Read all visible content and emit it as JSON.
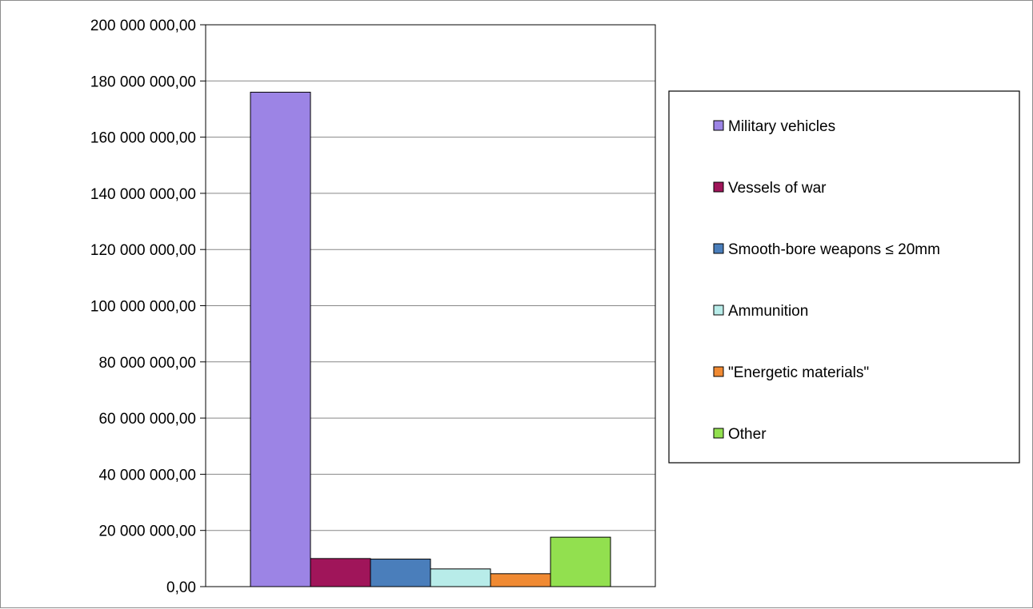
{
  "chart_data": {
    "type": "bar",
    "title": "",
    "xlabel": "",
    "ylabel": "",
    "categories": [
      "Military vehicles",
      "Vessels of war",
      "Smooth-bore weapons ≤ 20mm",
      "Ammunition",
      "\"Energetic materials\"",
      "Other"
    ],
    "series": [
      {
        "name": "Military vehicles",
        "value": 176000000,
        "color": "#9c84e5"
      },
      {
        "name": "Vessels of war",
        "value": 10000000,
        "color": "#a0155a"
      },
      {
        "name": "Smooth-bore weapons ≤ 20mm",
        "value": 9800000,
        "color": "#4a7ebb"
      },
      {
        "name": "Ammunition",
        "value": 6300000,
        "color": "#b8ece9"
      },
      {
        "name": "\"Energetic materials\"",
        "value": 4600000,
        "color": "#f08a33"
      },
      {
        "name": "Other",
        "value": 17600000,
        "color": "#92e04f"
      }
    ],
    "ylim": [
      0,
      200000000
    ],
    "yticks": [
      "0,00",
      "20 000 000,00",
      "40 000 000,00",
      "60 000 000,00",
      "80 000 000,00",
      "100 000 000,00",
      "120 000 000,00",
      "140 000 000,00",
      "160 000 000,00",
      "180 000 000,00",
      "200 000 000,00"
    ],
    "grid": true,
    "legend_position": "right"
  }
}
